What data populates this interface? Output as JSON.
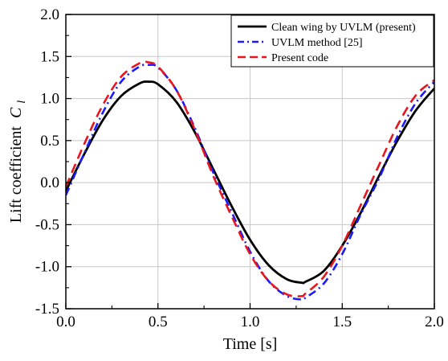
{
  "chart_data": {
    "type": "line",
    "xlabel": "Time [s]",
    "ylabel": "Lift coefficient",
    "ylabel_symbol": "C",
    "ylabel_subscript": "l",
    "xlim": [
      0.0,
      2.0
    ],
    "ylim": [
      -1.5,
      2.0
    ],
    "xticks": [
      "0.0",
      "0.5",
      "1.0",
      "1.5",
      "2.0"
    ],
    "yticks": [
      "-1.5",
      "-1.0",
      "-0.5",
      "0.0",
      "0.5",
      "1.0",
      "1.5",
      "2.0"
    ],
    "grid": true,
    "legend_position": "top-right",
    "x": [
      0.0,
      0.1,
      0.2,
      0.3,
      0.4,
      0.45,
      0.5,
      0.6,
      0.7,
      0.8,
      0.9,
      1.0,
      1.1,
      1.2,
      1.28,
      1.3,
      1.4,
      1.5,
      1.6,
      1.7,
      1.8,
      1.9,
      2.0
    ],
    "series": [
      {
        "name": "Clean wing by UVLM (present)",
        "color": "#000000",
        "dash": "solid",
        "values": [
          -0.1,
          0.34,
          0.74,
          1.03,
          1.18,
          1.2,
          1.17,
          0.96,
          0.6,
          0.16,
          -0.28,
          -0.68,
          -0.98,
          -1.15,
          -1.19,
          -1.18,
          -1.05,
          -0.75,
          -0.36,
          0.08,
          0.5,
          0.86,
          1.12
        ]
      },
      {
        "name": "UVLM method [25]",
        "color": "#1a1aff",
        "dash": "dashdot",
        "values": [
          -0.15,
          0.35,
          0.83,
          1.2,
          1.38,
          1.4,
          1.37,
          1.1,
          0.65,
          0.12,
          -0.35,
          -0.82,
          -1.17,
          -1.35,
          -1.39,
          -1.37,
          -1.2,
          -0.85,
          -0.38,
          0.05,
          0.55,
          0.95,
          1.2
        ]
      },
      {
        "name": "Present code",
        "color": "#e8141e",
        "dash": "dashed",
        "values": [
          -0.05,
          0.46,
          0.92,
          1.26,
          1.42,
          1.43,
          1.38,
          1.1,
          0.63,
          0.08,
          -0.4,
          -0.85,
          -1.17,
          -1.33,
          -1.35,
          -1.32,
          -1.12,
          -0.75,
          -0.27,
          0.21,
          0.68,
          1.04,
          1.22
        ]
      }
    ]
  }
}
